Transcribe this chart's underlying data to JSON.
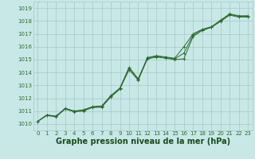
{
  "x": [
    0,
    1,
    2,
    3,
    4,
    5,
    6,
    7,
    8,
    9,
    10,
    11,
    12,
    13,
    14,
    15,
    16,
    17,
    18,
    19,
    20,
    21,
    22,
    23
  ],
  "line1": [
    1010.2,
    1010.7,
    1010.6,
    1011.2,
    1011.0,
    1011.05,
    1011.3,
    1011.35,
    1012.15,
    1012.75,
    1014.2,
    1013.4,
    1015.05,
    1015.2,
    1015.1,
    1015.0,
    1015.05,
    1016.8,
    1017.25,
    1017.5,
    1017.95,
    1018.45,
    1018.3,
    1018.3
  ],
  "line2": [
    1010.2,
    1010.65,
    1010.55,
    1011.15,
    1010.95,
    1011.0,
    1011.28,
    1011.3,
    1012.1,
    1012.7,
    1014.35,
    1013.45,
    1015.1,
    1015.25,
    1015.15,
    1015.05,
    1015.5,
    1016.9,
    1017.3,
    1017.5,
    1018.0,
    1018.5,
    1018.35,
    1018.35
  ],
  "line3": [
    1010.2,
    1010.7,
    1010.6,
    1011.2,
    1011.0,
    1011.1,
    1011.35,
    1011.4,
    1012.2,
    1012.8,
    1014.4,
    1013.5,
    1015.15,
    1015.3,
    1015.2,
    1015.1,
    1016.0,
    1017.0,
    1017.35,
    1017.55,
    1018.05,
    1018.55,
    1018.4,
    1018.4
  ],
  "ylim": [
    1009.5,
    1019.5
  ],
  "yticks": [
    1010,
    1011,
    1012,
    1013,
    1014,
    1015,
    1016,
    1017,
    1018,
    1019
  ],
  "xticks": [
    0,
    1,
    2,
    3,
    4,
    5,
    6,
    7,
    8,
    9,
    10,
    11,
    12,
    13,
    14,
    15,
    16,
    17,
    18,
    19,
    20,
    21,
    22,
    23
  ],
  "line_color": "#2d6a2d",
  "bg_color": "#c8e8e8",
  "grid_color": "#a8c8c8",
  "xlabel": "Graphe pression niveau de la mer (hPa)",
  "xlabel_color": "#1a4a1a",
  "xlabel_fontsize": 7,
  "tick_fontsize": 5
}
